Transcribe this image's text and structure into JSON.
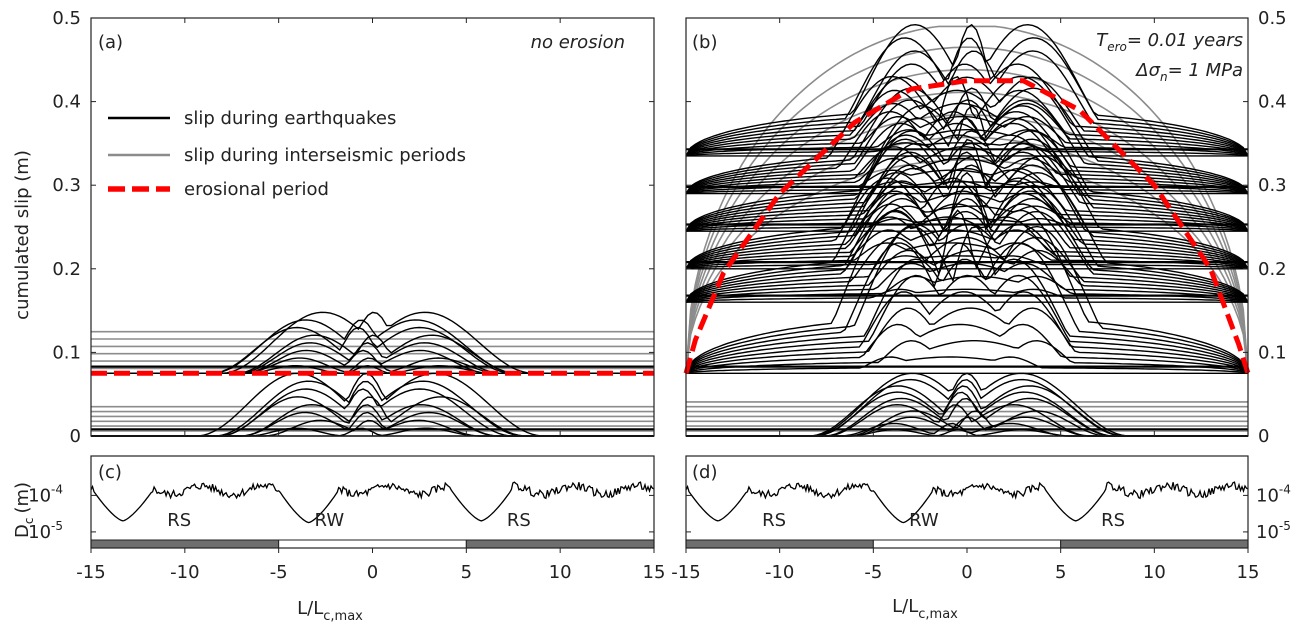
{
  "figure": {
    "xlabel_main": "L/L",
    "xlabel_sub": "c,max",
    "ylabel_top": "cumulated slip (m)",
    "ylabel_bottom_main": "D",
    "ylabel_bottom_sub": "c",
    "ylabel_bottom_unit": "(m)"
  },
  "chart_data": [
    {
      "id": "a",
      "type": "line",
      "panel_label": "(a)",
      "annotation": "no erosion",
      "legend": {
        "placement": "upper-left",
        "entries": [
          {
            "label": "slip during earthquakes",
            "color": "#000000",
            "style": "solid"
          },
          {
            "label": "slip during interseismic periods",
            "color": "#8c8c8c",
            "style": "solid"
          },
          {
            "label": "erosional period",
            "color": "#ff0000",
            "style": "dashed"
          }
        ]
      },
      "xlim": [
        -15,
        15
      ],
      "ylim": [
        0,
        0.5
      ],
      "yticks": [
        "0",
        "0.1",
        "0.2",
        "0.3",
        "0.4",
        "0.5"
      ],
      "yaxis_side": "left",
      "erosion_level": 0.075,
      "erosion_profile": {
        "x": [
          -15,
          15
        ],
        "y": [
          0.075,
          0.075
        ]
      },
      "earthquake_cycles": [
        {
          "base": 0.0,
          "top": 0.075,
          "shift": 0.0
        },
        {
          "base": 0.075,
          "top": 0.148,
          "shift": 0.0
        }
      ],
      "interseismic_envelope_max": 0.125
    },
    {
      "id": "b",
      "type": "line",
      "panel_label": "(b)",
      "annotation_lines": [
        {
          "main": "T",
          "sub": "ero",
          "rest": "= 0.01 years"
        },
        {
          "main": "Δσ",
          "sub": "n",
          "rest": "= 1 MPa"
        }
      ],
      "xlim": [
        -15,
        15
      ],
      "ylim": [
        0,
        0.5
      ],
      "yticks": [
        "0",
        "0.1",
        "0.2",
        "0.3",
        "0.4",
        "0.5"
      ],
      "yaxis_side": "right",
      "erosion_profile": {
        "x": [
          -15,
          -14.5,
          -13,
          -10,
          -6,
          -3,
          0,
          3,
          6,
          10,
          13,
          14.5,
          15
        ],
        "y": [
          0.075,
          0.115,
          0.195,
          0.29,
          0.375,
          0.415,
          0.425,
          0.425,
          0.39,
          0.3,
          0.2,
          0.11,
          0.075
        ]
      },
      "earthquake_cycles": [
        {
          "base": 0.0,
          "top": 0.075,
          "shift": 0.0
        },
        {
          "base": 0.075,
          "top": 0.27,
          "shift": 0.0
        },
        {
          "base": 0.16,
          "top": 0.315,
          "shift": 0.2
        },
        {
          "base": 0.2,
          "top": 0.355,
          "shift": -0.2
        },
        {
          "base": 0.245,
          "top": 0.395,
          "shift": 0.3
        },
        {
          "base": 0.29,
          "top": 0.43,
          "shift": 0.0
        },
        {
          "base": 0.335,
          "top": 0.492,
          "shift": 0.0
        }
      ],
      "interseismic_envelope_max": 0.49
    },
    {
      "id": "c",
      "type": "line",
      "panel_label": "(c)",
      "xlim": [
        -15,
        15
      ],
      "yscale": "log",
      "ylim": [
        6e-06,
        0.0012
      ],
      "yticks": [
        {
          "main": "10",
          "exp": "-4",
          "value": 0.0001
        },
        {
          "main": "10",
          "exp": "-5",
          "value": 1e-05
        }
      ],
      "yaxis_side": "left",
      "xticks": [
        "-15",
        "-10",
        "-5",
        "0",
        "5",
        "10",
        "15"
      ],
      "region_labels": [
        {
          "text": "RS",
          "x": -10.3
        },
        {
          "text": "RW",
          "x": -2.3
        },
        {
          "text": "RS",
          "x": 7.8
        }
      ],
      "dc_minima": [
        {
          "x": -13.3,
          "value": 2e-05
        },
        {
          "x": -3.4,
          "value": 1.8e-05
        },
        {
          "x": 5.8,
          "value": 2e-05
        }
      ],
      "dc_baseline": 0.00014,
      "regions_bar": [
        {
          "from": -15,
          "to": -5,
          "fill": "#6e6e6e"
        },
        {
          "from": -5,
          "to": 5,
          "fill": "#ffffff"
        },
        {
          "from": 5,
          "to": 15,
          "fill": "#6e6e6e"
        }
      ]
    },
    {
      "id": "d",
      "type": "line",
      "panel_label": "(d)",
      "xlim": [
        -15,
        15
      ],
      "yscale": "log",
      "ylim": [
        6e-06,
        0.0012
      ],
      "yticks": [
        {
          "main": "10",
          "exp": "-4",
          "value": 0.0001
        },
        {
          "main": "10",
          "exp": "-5",
          "value": 1e-05
        }
      ],
      "yaxis_side": "right",
      "xticks": [
        "-15",
        "-10",
        "-5",
        "0",
        "5",
        "10",
        "15"
      ],
      "region_labels": [
        {
          "text": "RS",
          "x": -10.3
        },
        {
          "text": "RW",
          "x": -2.3
        },
        {
          "text": "RS",
          "x": 7.8
        }
      ],
      "dc_minima": [
        {
          "x": -13.3,
          "value": 2e-05
        },
        {
          "x": -3.4,
          "value": 1.8e-05
        },
        {
          "x": 5.8,
          "value": 2e-05
        }
      ],
      "dc_baseline": 0.00014,
      "regions_bar": [
        {
          "from": -15,
          "to": -5,
          "fill": "#6e6e6e"
        },
        {
          "from": -5,
          "to": 5,
          "fill": "#ffffff"
        },
        {
          "from": 5,
          "to": 15,
          "fill": "#6e6e6e"
        }
      ]
    }
  ]
}
